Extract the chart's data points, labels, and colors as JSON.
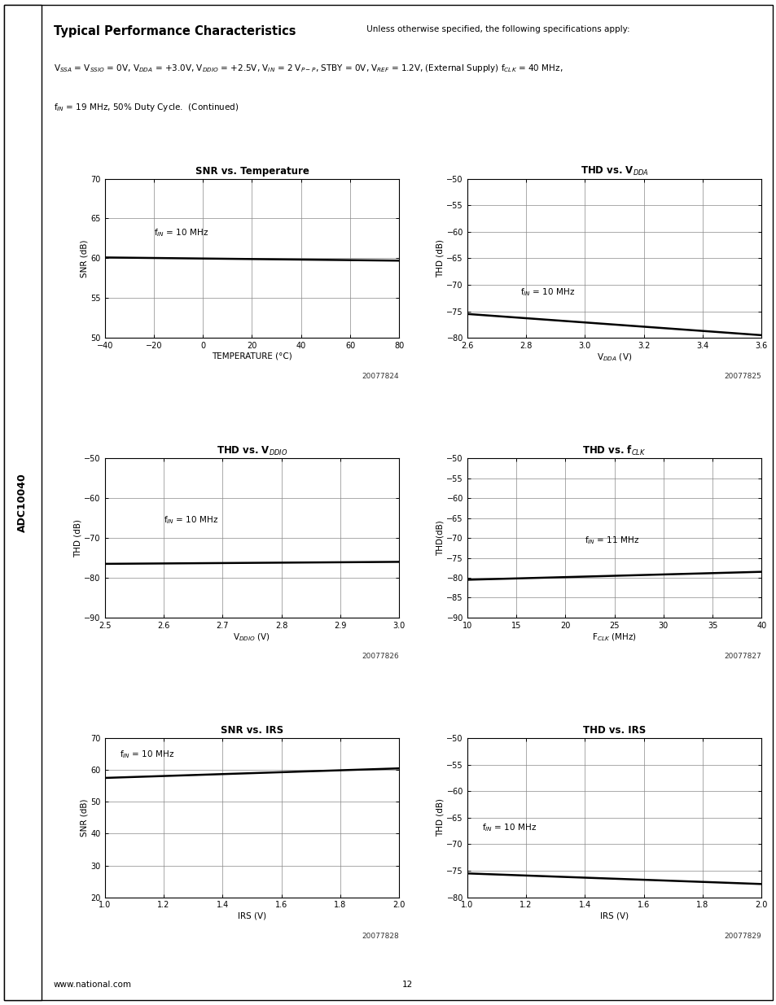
{
  "page_label": "ADC10040",
  "footer_left": "www.national.com",
  "footer_center": "12",
  "plots": [
    {
      "title": "SNR vs. Temperature",
      "xlabel": "TEMPERATURE (°C)",
      "ylabel": "SNR (dB)",
      "xlim": [
        -40,
        80
      ],
      "ylim": [
        50,
        70
      ],
      "xticks": [
        -40,
        -20,
        0,
        20,
        40,
        60,
        80
      ],
      "yticks": [
        50,
        55,
        60,
        65,
        70
      ],
      "ann_text": "f$_{IN}$ = 10 MHz",
      "ann_x": -20,
      "ann_y": 62.5,
      "curve_x": [
        -40,
        80
      ],
      "curve_y": [
        60.1,
        59.7
      ],
      "fignum": "20077824"
    },
    {
      "title": "THD vs. V$_{DDA}$",
      "xlabel": "V$_{DDA}$ (V)",
      "ylabel": "THD (dB)",
      "xlim": [
        2.6,
        3.6
      ],
      "ylim": [
        -80,
        -50
      ],
      "xticks": [
        2.6,
        2.8,
        3.0,
        3.2,
        3.4,
        3.6
      ],
      "yticks": [
        -80,
        -75,
        -70,
        -65,
        -60,
        -55,
        -50
      ],
      "ann_text": "f$_{IN}$ = 10 MHz",
      "ann_x": 2.78,
      "ann_y": -72.5,
      "curve_x": [
        2.6,
        3.6
      ],
      "curve_y": [
        -75.5,
        -79.5
      ],
      "fignum": "20077825"
    },
    {
      "title": "THD vs. V$_{DDIO}$",
      "xlabel": "V$_{DDIO}$ (V)",
      "ylabel": "THD (dB)",
      "xlim": [
        2.5,
        3.0
      ],
      "ylim": [
        -90,
        -50
      ],
      "xticks": [
        2.5,
        2.6,
        2.7,
        2.8,
        2.9,
        3.0
      ],
      "yticks": [
        -90,
        -80,
        -70,
        -60,
        -50
      ],
      "ann_text": "f$_{IN}$ = 10 MHz",
      "ann_x": 2.6,
      "ann_y": -67,
      "curve_x": [
        2.5,
        3.0
      ],
      "curve_y": [
        -76.5,
        -76.0
      ],
      "fignum": "20077826"
    },
    {
      "title": "THD vs. f$_{CLK}$",
      "xlabel": "F$_{CLK}$ (MHz)",
      "ylabel": "THD(dB)",
      "xlim": [
        10,
        40
      ],
      "ylim": [
        -90,
        -50
      ],
      "xticks": [
        10,
        15,
        20,
        25,
        30,
        35,
        40
      ],
      "yticks": [
        -90,
        -85,
        -80,
        -75,
        -70,
        -65,
        -60,
        -55,
        -50
      ],
      "ann_text": "f$_{IN}$ = 11 MHz",
      "ann_x": 22,
      "ann_y": -72,
      "curve_x": [
        10,
        40
      ],
      "curve_y": [
        -80.5,
        -78.5
      ],
      "fignum": "20077827"
    },
    {
      "title": "SNR vs. IRS",
      "xlabel": "IRS (V)",
      "ylabel": "SNR (dB)",
      "xlim": [
        1.0,
        2.0
      ],
      "ylim": [
        20,
        70
      ],
      "xticks": [
        1.0,
        1.2,
        1.4,
        1.6,
        1.8,
        2.0
      ],
      "yticks": [
        20,
        30,
        40,
        50,
        60,
        70
      ],
      "ann_text": "f$_{IN}$ = 10 MHz",
      "ann_x": 1.05,
      "ann_y": 63,
      "curve_x": [
        1.0,
        2.0
      ],
      "curve_y": [
        57.5,
        60.5
      ],
      "fignum": "20077828"
    },
    {
      "title": "THD vs. IRS",
      "xlabel": "IRS (V)",
      "ylabel": "THD (dB)",
      "xlim": [
        1.0,
        2.0
      ],
      "ylim": [
        -80,
        -50
      ],
      "xticks": [
        1.0,
        1.2,
        1.4,
        1.6,
        1.8,
        2.0
      ],
      "yticks": [
        -80,
        -75,
        -70,
        -65,
        -60,
        -55,
        -50
      ],
      "ann_text": "f$_{IN}$ = 10 MHz",
      "ann_x": 1.05,
      "ann_y": -68,
      "curve_x": [
        1.0,
        2.0
      ],
      "curve_y": [
        -75.5,
        -77.5
      ],
      "fignum": "20077829"
    }
  ]
}
